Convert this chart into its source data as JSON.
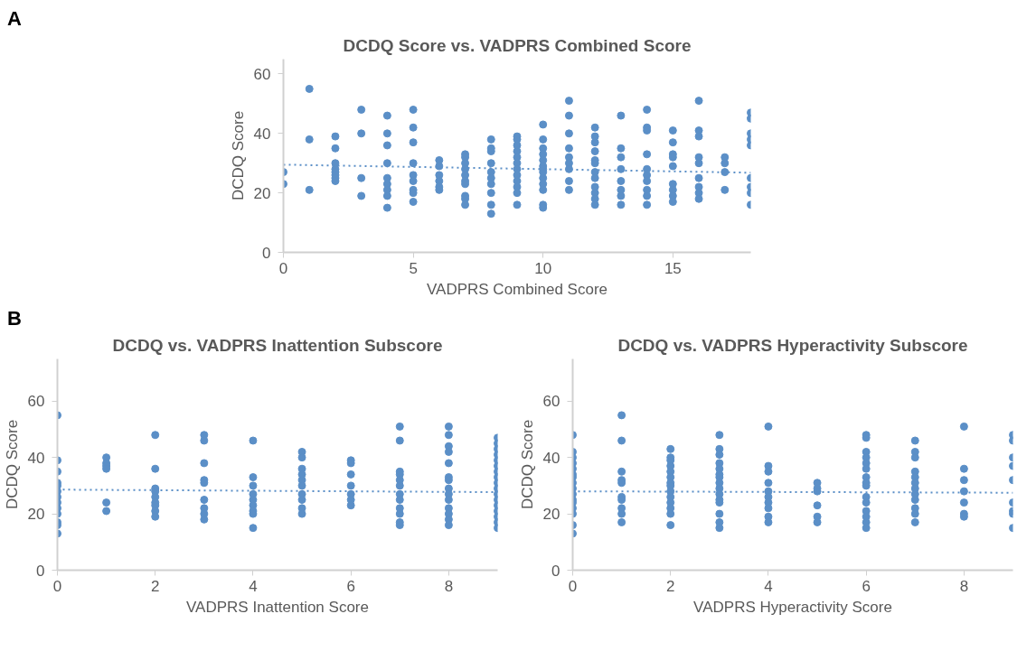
{
  "chart_data": [
    {
      "type": "scatter",
      "title": "DCDQ Score vs. VADPRS Combined Score",
      "xlabel": "VADPRS Combined Score",
      "ylabel": "DCDQ Score",
      "annotations": [
        "A"
      ],
      "xlim": [
        0,
        18
      ],
      "ylim": [
        0,
        65
      ],
      "xticks": [
        0,
        5,
        10,
        15
      ],
      "yticks": [
        0,
        20,
        40,
        60
      ],
      "grid": false,
      "marker": "circle",
      "series": [
        {
          "color": "#5b8fc7",
          "x": [
            0,
            0,
            1,
            1,
            1,
            2,
            2,
            2,
            2,
            2,
            2,
            2,
            2,
            3,
            3,
            3,
            3,
            4,
            4,
            4,
            4,
            4,
            4,
            4,
            4,
            4,
            5,
            5,
            5,
            5,
            5,
            5,
            5,
            5,
            5,
            6,
            6,
            6,
            6,
            6,
            6,
            7,
            7,
            7,
            7,
            7,
            7,
            7,
            7,
            7,
            7,
            8,
            8,
            8,
            8,
            8,
            8,
            8,
            8,
            8,
            8,
            9,
            9,
            9,
            9,
            9,
            9,
            9,
            9,
            9,
            9,
            9,
            9,
            10,
            10,
            10,
            10,
            10,
            10,
            10,
            10,
            10,
            10,
            10,
            10,
            10,
            11,
            11,
            11,
            11,
            11,
            11,
            11,
            11,
            11,
            12,
            12,
            12,
            12,
            12,
            12,
            12,
            12,
            12,
            12,
            12,
            12,
            13,
            13,
            13,
            13,
            13,
            13,
            13,
            13,
            14,
            14,
            14,
            14,
            14,
            14,
            14,
            14,
            14,
            14,
            15,
            15,
            15,
            15,
            15,
            15,
            15,
            15,
            15,
            16,
            16,
            16,
            16,
            16,
            16,
            16,
            16,
            16,
            17,
            17,
            17,
            17,
            18,
            18,
            18,
            18,
            18,
            18,
            18,
            18,
            18
          ],
          "values": [
            27,
            23,
            55,
            38,
            21,
            39,
            35,
            30,
            28,
            27,
            26,
            25,
            24,
            48,
            40,
            25,
            19,
            46,
            40,
            36,
            30,
            25,
            23,
            21,
            19,
            15,
            48,
            42,
            37,
            30,
            26,
            24,
            21,
            20,
            17,
            31,
            29,
            26,
            24,
            22,
            21,
            33,
            32,
            30,
            28,
            26,
            24,
            23,
            19,
            18,
            16,
            38,
            35,
            34,
            30,
            27,
            25,
            23,
            20,
            16,
            13,
            39,
            38,
            36,
            34,
            32,
            30,
            28,
            26,
            24,
            22,
            20,
            16,
            43,
            38,
            35,
            33,
            31,
            29,
            28,
            27,
            25,
            23,
            21,
            16,
            15,
            51,
            46,
            40,
            35,
            32,
            30,
            28,
            24,
            21,
            42,
            39,
            37,
            34,
            31,
            30,
            27,
            25,
            22,
            20,
            18,
            16,
            46,
            35,
            32,
            28,
            24,
            21,
            19,
            16,
            48,
            42,
            41,
            33,
            28,
            26,
            24,
            21,
            19,
            16,
            41,
            37,
            33,
            32,
            29,
            23,
            21,
            19,
            17,
            51,
            41,
            39,
            32,
            30,
            25,
            22,
            20,
            18,
            32,
            30,
            27,
            21,
            47,
            45,
            40,
            38,
            36,
            25,
            22,
            20,
            16
          ]
        },
        {
          "type": "line",
          "color": "#5b8fc7",
          "line_style": "dotted",
          "marker": "none",
          "x": [
            0,
            18
          ],
          "values": [
            29.5,
            26.8
          ]
        }
      ]
    },
    {
      "type": "scatter",
      "title": "DCDQ vs. VADPRS Inattention Subscore",
      "xlabel": "VADPRS Inattention Score",
      "ylabel": "DCDQ Score",
      "annotations": [
        "B"
      ],
      "xlim": [
        0,
        9
      ],
      "ylim": [
        0,
        75
      ],
      "xticks": [
        0,
        2,
        4,
        6,
        8
      ],
      "yticks": [
        0,
        20,
        40,
        60
      ],
      "grid": false,
      "marker": "circle",
      "series": [
        {
          "color": "#5b8fc7",
          "x": [
            0,
            0,
            0,
            0,
            0,
            0,
            0,
            0,
            0,
            0,
            0,
            0,
            0,
            1,
            1,
            1,
            1,
            1,
            1,
            2,
            2,
            2,
            2,
            2,
            2,
            2,
            2,
            2,
            3,
            3,
            3,
            3,
            3,
            3,
            3,
            3,
            3,
            4,
            4,
            4,
            4,
            4,
            4,
            4,
            4,
            4,
            5,
            5,
            5,
            5,
            5,
            5,
            5,
            5,
            5,
            5,
            6,
            6,
            6,
            6,
            6,
            6,
            6,
            7,
            7,
            7,
            7,
            7,
            7,
            7,
            7,
            7,
            7,
            7,
            7,
            8,
            8,
            8,
            8,
            8,
            8,
            8,
            8,
            8,
            8,
            8,
            8,
            8,
            8,
            9,
            9,
            9,
            9,
            9,
            9,
            9,
            9,
            9,
            9,
            9,
            9,
            9,
            9,
            9,
            9,
            9
          ],
          "values": [
            55,
            39,
            35,
            31,
            30,
            28,
            26,
            24,
            22,
            20,
            17,
            16,
            13,
            40,
            38,
            37,
            36,
            24,
            21,
            48,
            36,
            29,
            28,
            26,
            24,
            23,
            21,
            19,
            48,
            46,
            38,
            32,
            31,
            25,
            22,
            20,
            18,
            46,
            33,
            30,
            27,
            25,
            23,
            21,
            20,
            15,
            42,
            40,
            36,
            34,
            32,
            30,
            27,
            25,
            22,
            20,
            39,
            38,
            34,
            30,
            27,
            25,
            23,
            51,
            46,
            35,
            34,
            32,
            30,
            27,
            25,
            22,
            20,
            17,
            16,
            51,
            48,
            44,
            42,
            38,
            33,
            32,
            29,
            27,
            25,
            22,
            20,
            18,
            16,
            47,
            45,
            43,
            41,
            39,
            37,
            35,
            33,
            31,
            29,
            27,
            25,
            23,
            21,
            19,
            17,
            15
          ]
        },
        {
          "type": "line",
          "color": "#5b8fc7",
          "line_style": "dotted",
          "marker": "none",
          "x": [
            0,
            9
          ],
          "values": [
            28.6,
            27.7
          ]
        }
      ]
    },
    {
      "type": "scatter",
      "title": "DCDQ vs. VADPRS Hyperactivity Subscore",
      "xlabel": "VADPRS Hyperactivity Score",
      "ylabel": "DCDQ Score",
      "xlim": [
        0,
        9
      ],
      "ylim": [
        0,
        75
      ],
      "xticks": [
        0,
        2,
        4,
        6,
        8
      ],
      "yticks": [
        0,
        20,
        40,
        60
      ],
      "grid": false,
      "marker": "circle",
      "series": [
        {
          "color": "#5b8fc7",
          "x": [
            0,
            0,
            0,
            0,
            0,
            0,
            0,
            0,
            0,
            0,
            0,
            0,
            0,
            0,
            0,
            0,
            1,
            1,
            1,
            1,
            1,
            1,
            1,
            1,
            1,
            1,
            2,
            2,
            2,
            2,
            2,
            2,
            2,
            2,
            2,
            2,
            2,
            2,
            2,
            2,
            3,
            3,
            3,
            3,
            3,
            3,
            3,
            3,
            3,
            3,
            3,
            3,
            3,
            3,
            3,
            4,
            4,
            4,
            4,
            4,
            4,
            4,
            4,
            4,
            4,
            5,
            5,
            5,
            5,
            5,
            5,
            6,
            6,
            6,
            6,
            6,
            6,
            6,
            6,
            6,
            6,
            6,
            6,
            6,
            6,
            6,
            7,
            7,
            7,
            7,
            7,
            7,
            7,
            7,
            7,
            7,
            7,
            7,
            8,
            8,
            8,
            8,
            8,
            8,
            8,
            9,
            9,
            9,
            9,
            9,
            9,
            9,
            9,
            9
          ],
          "values": [
            48,
            42,
            40,
            38,
            36,
            34,
            33,
            31,
            29,
            27,
            25,
            24,
            22,
            20,
            16,
            13,
            55,
            46,
            35,
            32,
            31,
            26,
            25,
            22,
            20,
            17,
            43,
            40,
            39,
            37,
            35,
            33,
            31,
            30,
            28,
            26,
            24,
            22,
            20,
            16,
            48,
            43,
            41,
            38,
            36,
            34,
            33,
            31,
            29,
            27,
            25,
            24,
            20,
            17,
            15,
            51,
            37,
            35,
            31,
            28,
            26,
            24,
            22,
            19,
            17,
            31,
            29,
            28,
            23,
            19,
            17,
            48,
            47,
            42,
            40,
            38,
            36,
            33,
            31,
            30,
            26,
            24,
            21,
            19,
            17,
            15,
            46,
            42,
            40,
            35,
            33,
            31,
            29,
            27,
            25,
            22,
            20,
            17,
            51,
            36,
            32,
            28,
            24,
            20,
            19,
            48,
            46,
            40,
            37,
            32,
            24,
            21,
            20,
            15
          ]
        },
        {
          "type": "line",
          "color": "#5b8fc7",
          "line_style": "dotted",
          "marker": "none",
          "x": [
            0,
            9
          ],
          "values": [
            28.0,
            27.5
          ]
        }
      ]
    }
  ]
}
